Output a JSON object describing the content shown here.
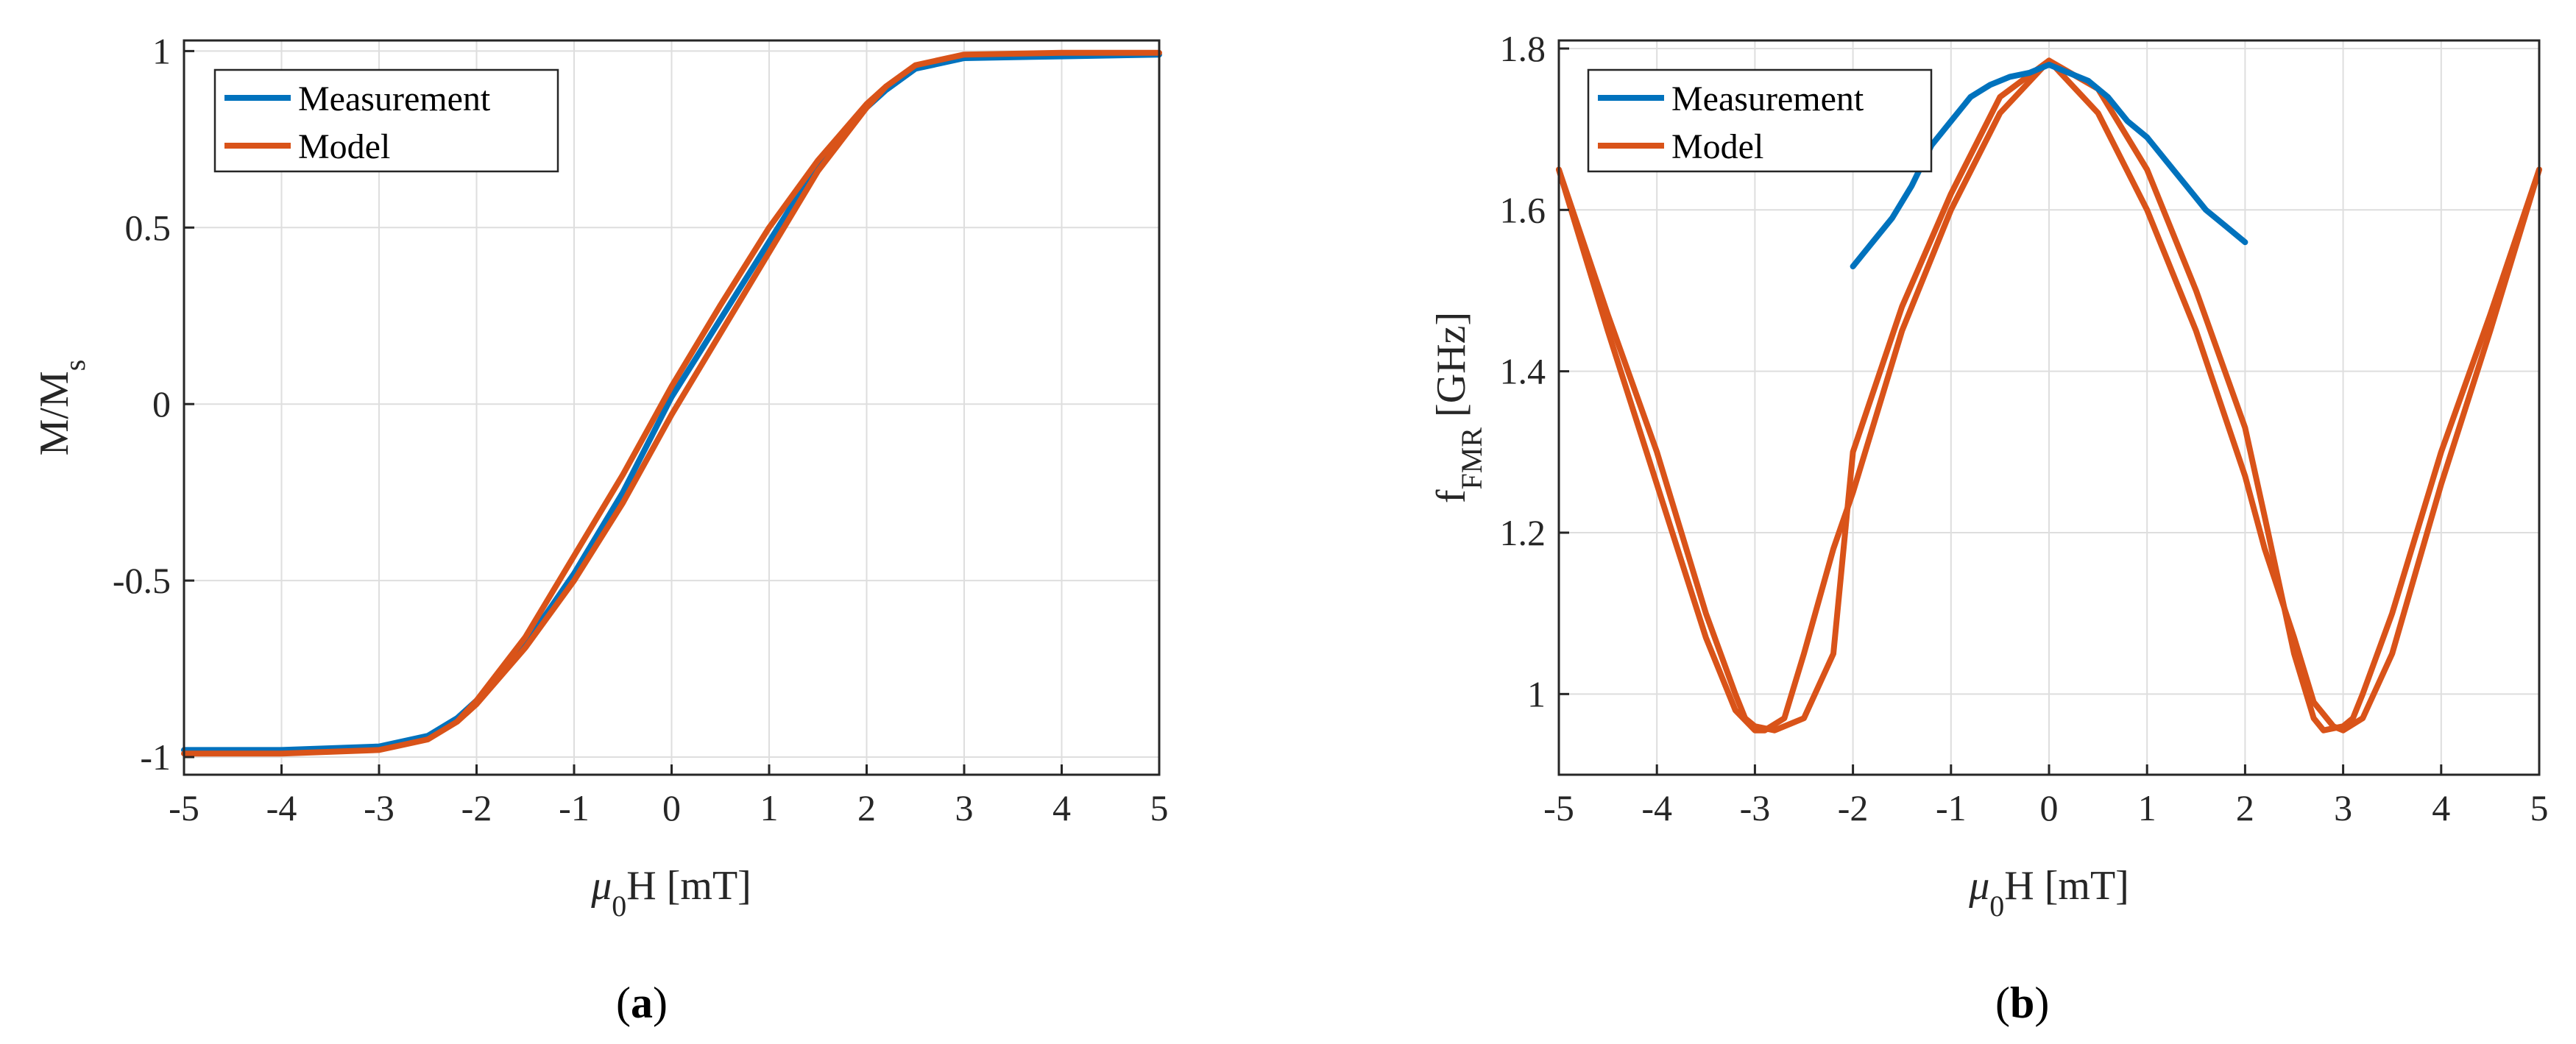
{
  "colors": {
    "measurement": "#0072bd",
    "model": "#d95319",
    "grid": "#dedede",
    "axis": "#262626"
  },
  "chart_data": [
    {
      "type": "line",
      "panel_label": "a",
      "xlabel_base": "μ",
      "xlabel_sub": "0",
      "xlabel_rest": "H [mT]",
      "ylabel_base": "M/M",
      "ylabel_sub": "s",
      "xlim": [
        -5,
        5
      ],
      "ylim": [
        -1.05,
        1.03
      ],
      "xticks": [
        -5,
        -4,
        -3,
        -2,
        -1,
        0,
        1,
        2,
        3,
        4,
        5
      ],
      "xtick_labels": [
        "-5",
        "-4",
        "-3",
        "-2",
        "-1",
        "0",
        "1",
        "2",
        "3",
        "4",
        "5"
      ],
      "yticks": [
        -1,
        -0.5,
        0,
        0.5,
        1
      ],
      "ytick_labels": [
        "-1",
        "-0.5",
        "0",
        "0.5",
        "1"
      ],
      "grid": true,
      "legend_position": "top-left",
      "series": [
        {
          "name": "Measurement",
          "color_key": "measurement",
          "x": [
            -5,
            -4,
            -3,
            -2.5,
            -2.2,
            -2,
            -1.5,
            -1,
            -0.5,
            0,
            0.5,
            1,
            1.5,
            2,
            2.2,
            2.5,
            3,
            4,
            5
          ],
          "y": [
            -0.98,
            -0.98,
            -0.97,
            -0.94,
            -0.89,
            -0.84,
            -0.68,
            -0.48,
            -0.25,
            0.02,
            0.24,
            0.46,
            0.68,
            0.84,
            0.89,
            0.95,
            0.98,
            0.985,
            0.99
          ]
        },
        {
          "name": "Model",
          "color_key": "model",
          "x": [
            -5,
            -4,
            -3,
            -2.5,
            -2.2,
            -2,
            -1.5,
            -1,
            -0.5,
            0,
            0.5,
            1,
            1.5,
            2,
            2.2,
            2.5,
            3,
            4,
            5,
            4,
            3,
            2.5,
            2.2,
            2,
            1.5,
            1,
            0.5,
            0,
            -0.5,
            -1,
            -1.5,
            -2,
            -2.2,
            -2.5,
            -3,
            -4,
            -5
          ],
          "y": [
            -0.99,
            -0.99,
            -0.98,
            -0.95,
            -0.9,
            -0.85,
            -0.69,
            -0.5,
            -0.28,
            -0.03,
            0.2,
            0.43,
            0.66,
            0.84,
            0.9,
            0.96,
            0.99,
            0.995,
            0.995,
            0.995,
            0.99,
            0.96,
            0.9,
            0.85,
            0.69,
            0.5,
            0.28,
            0.05,
            -0.2,
            -0.43,
            -0.66,
            -0.84,
            -0.9,
            -0.95,
            -0.98,
            -0.99,
            -0.99
          ]
        }
      ]
    },
    {
      "type": "line",
      "panel_label": "b",
      "xlabel_base": "μ",
      "xlabel_sub": "0",
      "xlabel_rest": "H [mT]",
      "ylabel_base": "f",
      "ylabel_sub": "FMR",
      "ylabel_rest": "[GHz]",
      "xlim": [
        -5,
        5
      ],
      "ylim": [
        0.9,
        1.81
      ],
      "xticks": [
        -5,
        -4,
        -3,
        -2,
        -1,
        0,
        1,
        2,
        3,
        4,
        5
      ],
      "xtick_labels": [
        "-5",
        "-4",
        "-3",
        "-2",
        "-1",
        "0",
        "1",
        "2",
        "3",
        "4",
        "5"
      ],
      "yticks": [
        1,
        1.2,
        1.4,
        1.6,
        1.8
      ],
      "ytick_labels": [
        "1",
        "1.2",
        "1.4",
        "1.6",
        "1.8"
      ],
      "grid": true,
      "legend_position": "top-left",
      "series": [
        {
          "name": "Measurement",
          "color_key": "measurement",
          "x": [
            -2,
            -1.8,
            -1.6,
            -1.4,
            -1.2,
            -1,
            -0.8,
            -0.6,
            -0.4,
            -0.2,
            0,
            0.2,
            0.4,
            0.6,
            0.8,
            1,
            1.2,
            1.4,
            1.6,
            1.8,
            2
          ],
          "y": [
            1.53,
            1.56,
            1.59,
            1.63,
            1.68,
            1.71,
            1.74,
            1.755,
            1.765,
            1.77,
            1.78,
            1.77,
            1.76,
            1.74,
            1.71,
            1.69,
            1.66,
            1.63,
            1.6,
            1.58,
            1.56
          ]
        },
        {
          "name": "Model",
          "color_key": "model",
          "x": [
            -5,
            -4.5,
            -4,
            -3.5,
            -3.2,
            -3,
            -2.9,
            -2.7,
            -2.5,
            -2.2,
            -2,
            -1.5,
            -1,
            -0.5,
            0,
            0.5,
            1,
            1.5,
            2,
            2.2,
            2.5,
            2.7,
            2.8,
            3,
            3.1,
            3.2,
            3.5,
            4,
            4.5,
            5
          ],
          "y": [
            1.65,
            1.45,
            1.26,
            1.07,
            0.98,
            0.955,
            0.955,
            0.97,
            1.05,
            1.18,
            1.25,
            1.45,
            1.6,
            1.72,
            1.785,
            1.75,
            1.65,
            1.5,
            1.33,
            1.22,
            1.05,
            0.97,
            0.955,
            0.96,
            0.97,
            1.0,
            1.1,
            1.3,
            1.47,
            1.65
          ]
        },
        {
          "name": "Model",
          "color_key": "model",
          "x": [
            -5,
            -4.5,
            -4,
            -3.5,
            -3.2,
            -3.1,
            -3,
            -2.8,
            -2.5,
            -2.2,
            -2,
            -1.5,
            -1,
            -0.5,
            0,
            0.5,
            1,
            1.5,
            2,
            2.2,
            2.5,
            2.7,
            2.9,
            3,
            3.2,
            3.5,
            4,
            4.5,
            5
          ],
          "y": [
            1.65,
            1.47,
            1.3,
            1.1,
            1.0,
            0.97,
            0.96,
            0.955,
            0.97,
            1.05,
            1.3,
            1.48,
            1.62,
            1.74,
            1.785,
            1.72,
            1.6,
            1.45,
            1.27,
            1.18,
            1.07,
            0.99,
            0.96,
            0.955,
            0.97,
            1.05,
            1.26,
            1.45,
            1.65
          ]
        }
      ]
    }
  ]
}
